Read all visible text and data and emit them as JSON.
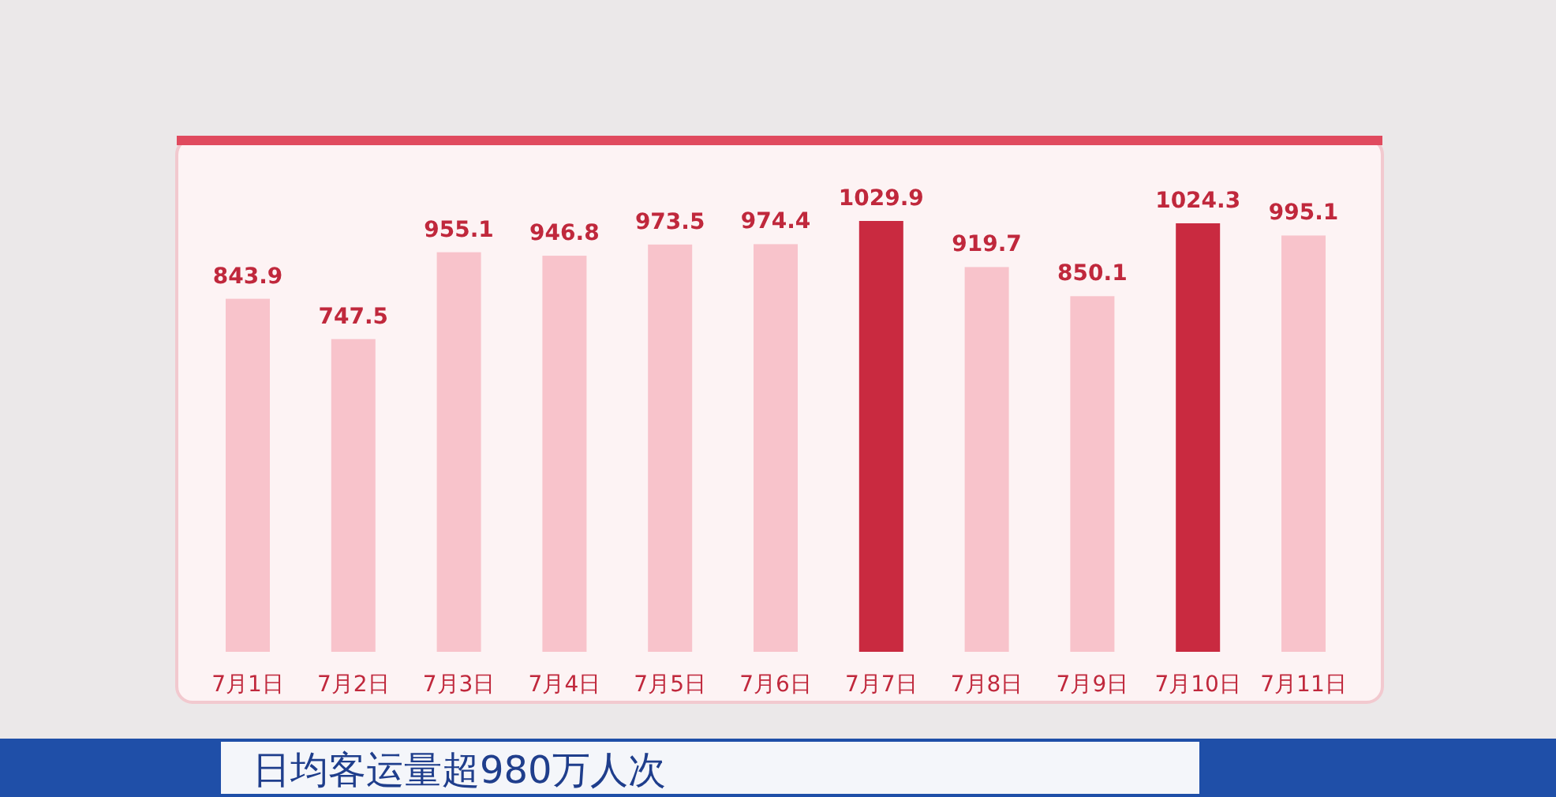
{
  "chart_data": {
    "type": "bar",
    "title": "日均客运量超980万人次",
    "categories": [
      "7月1日",
      "7月2日",
      "7月3日",
      "7月4日",
      "7月5日",
      "7月6日",
      "7月7日",
      "7月8日",
      "7月9日",
      "7月10日",
      "7月11日"
    ],
    "values": [
      843.9,
      747.5,
      955.1,
      946.8,
      973.5,
      974.4,
      1029.9,
      919.7,
      850.1,
      1024.3,
      995.1
    ],
    "colors": [
      "#f8c3cb",
      "#f8c3cb",
      "#f8c3cb",
      "#f8c3cb",
      "#f8c3cb",
      "#f8c3cb",
      "#c92a40",
      "#f8c3cb",
      "#f8c3cb",
      "#c92a40",
      "#f8c3cb"
    ],
    "data_labels": true
  }
}
